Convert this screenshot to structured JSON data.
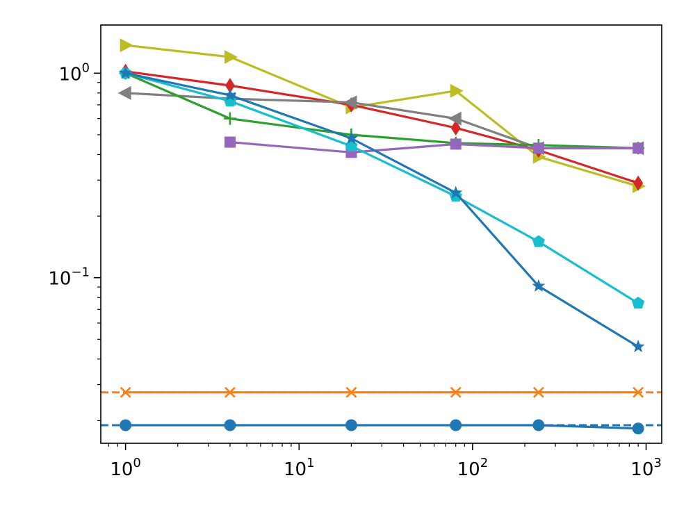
{
  "chart_data": {
    "type": "line",
    "title": "",
    "xlabel": "",
    "ylabel": "",
    "xscale": "log",
    "yscale": "log",
    "xlim": [
      0.72,
      1230
    ],
    "ylim": [
      0.0155,
      1.72
    ],
    "grid": false,
    "legend": "none",
    "x_ticks": [
      {
        "value": 1,
        "base": "10",
        "exp": "0"
      },
      {
        "value": 10,
        "base": "10",
        "exp": "1"
      },
      {
        "value": 100,
        "base": "10",
        "exp": "2"
      },
      {
        "value": 1000,
        "base": "10",
        "exp": "3"
      }
    ],
    "y_ticks": [
      {
        "value": 1,
        "base": "10",
        "exp": "0"
      },
      {
        "value": 0.1,
        "base": "10",
        "exp": "−1"
      }
    ],
    "series": [
      {
        "name": "olive-triangle-right",
        "color": "#bcbd22",
        "marker": "triangle-right",
        "x": [
          1,
          4,
          20,
          80,
          240,
          900
        ],
        "y": [
          1.37,
          1.2,
          0.68,
          0.82,
          0.39,
          0.28
        ]
      },
      {
        "name": "red-diamond",
        "color": "#d62728",
        "marker": "diamond",
        "x": [
          1,
          4,
          20,
          80,
          240,
          900
        ],
        "y": [
          1.02,
          0.87,
          0.7,
          0.54,
          0.42,
          0.29
        ]
      },
      {
        "name": "gray-triangle-left",
        "color": "#7f7f7f",
        "marker": "triangle-left",
        "x": [
          1,
          4,
          20,
          80,
          240,
          900
        ],
        "y": [
          0.8,
          0.75,
          0.72,
          0.6,
          0.43,
          0.43
        ]
      },
      {
        "name": "green-plus",
        "color": "#2ca02c",
        "marker": "plus",
        "x": [
          1,
          4,
          20,
          80,
          240,
          900
        ],
        "y": [
          1.0,
          0.6,
          0.5,
          0.455,
          0.445,
          0.43
        ]
      },
      {
        "name": "purple-square",
        "color": "#9467bd",
        "marker": "square",
        "x": [
          4,
          20,
          80,
          240,
          900
        ],
        "y": [
          0.46,
          0.41,
          0.45,
          0.43,
          0.43
        ]
      },
      {
        "name": "cyan-pentagon",
        "color": "#17becf",
        "marker": "pentagon",
        "x": [
          1,
          4,
          20,
          80,
          240,
          900
        ],
        "y": [
          1.0,
          0.73,
          0.44,
          0.25,
          0.15,
          0.075
        ]
      },
      {
        "name": "blue-star",
        "color": "#1f77b4",
        "marker": "star",
        "x": [
          1,
          4,
          20,
          80,
          240,
          900
        ],
        "y": [
          1.0,
          0.78,
          0.48,
          0.26,
          0.091,
          0.046
        ]
      },
      {
        "name": "orange-x",
        "color": "#ff7f0e",
        "marker": "x",
        "x": [
          1,
          4,
          20,
          80,
          240,
          900
        ],
        "y": [
          0.0275,
          0.0275,
          0.0275,
          0.0275,
          0.0275,
          0.0275
        ]
      },
      {
        "name": "blue-circle",
        "color": "#1f77b4",
        "marker": "circle",
        "x": [
          1,
          4,
          20,
          80,
          240,
          900
        ],
        "y": [
          0.019,
          0.019,
          0.019,
          0.019,
          0.019,
          0.0183
        ]
      }
    ],
    "reference_lines": [
      {
        "name": "orange-dashed-reference",
        "color": "#ff7f0e",
        "y": 0.0275,
        "style": "dashed"
      },
      {
        "name": "blue-dashed-reference",
        "color": "#1f77b4",
        "y": 0.019,
        "style": "dashed"
      }
    ]
  }
}
